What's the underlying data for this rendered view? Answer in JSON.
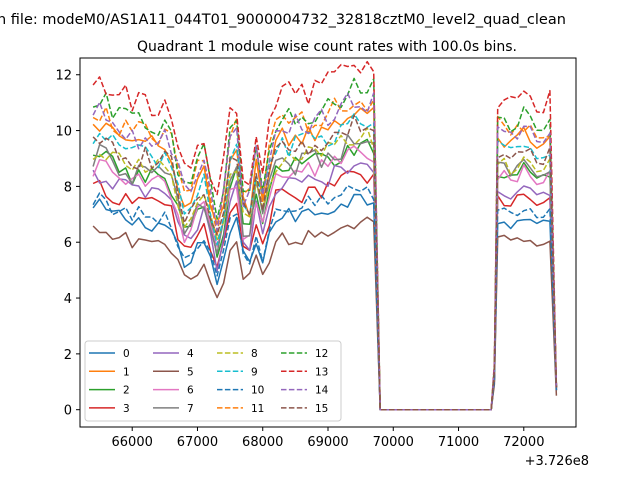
{
  "figure": {
    "suptitle": "n file: modeM0/AS1A11_044T01_9000004732_32818cztM0_level2_quad_clean",
    "title": "Quadrant 1 module wise count rates with 100.0s bins.",
    "offset_label": "+3.726e8"
  },
  "chart_data": {
    "type": "line",
    "title": "Quadrant 1 module wise count rates with 100.0s bins.",
    "xlabel": "",
    "ylabel": "",
    "x_offset": 372600000,
    "xlim": [
      65200,
      72800
    ],
    "ylim": [
      -0.62,
      12.6
    ],
    "xticks": [
      66000,
      67000,
      68000,
      69000,
      70000,
      71000,
      72000
    ],
    "xtick_labels": [
      "66000",
      "67000",
      "68000",
      "69000",
      "70000",
      "71000",
      "72000"
    ],
    "yticks": [
      0,
      2,
      4,
      6,
      8,
      10,
      12
    ],
    "ytick_labels": [
      "0",
      "2",
      "4",
      "6",
      "8",
      "10",
      "12"
    ],
    "grid": false,
    "legend": {
      "placement": "lower-left",
      "columns": 4
    },
    "gaps": [
      {
        "x": [
          69800,
          71500
        ],
        "y": 0
      }
    ],
    "series": [
      {
        "name": "0",
        "color": "#1f77b4",
        "dash": "solid",
        "base": 6.9,
        "d1": 0.55,
        "d2": 0.55,
        "d3": 0.6,
        "end": 0.7
      },
      {
        "name": "1",
        "color": "#ff7f0e",
        "dash": "solid",
        "base": 9.7,
        "d1": 0.62,
        "d2": 0.5,
        "d3": 0.55,
        "end": 0.8
      },
      {
        "name": "2",
        "color": "#2ca02c",
        "dash": "solid",
        "base": 8.6,
        "d1": 0.62,
        "d2": 0.55,
        "d3": 0.55,
        "end": 0.8
      },
      {
        "name": "3",
        "color": "#d62728",
        "dash": "solid",
        "base": 7.6,
        "d1": 0.6,
        "d2": 0.55,
        "d3": 0.6,
        "end": 0.7
      },
      {
        "name": "4",
        "color": "#9467bd",
        "dash": "solid",
        "base": 8.0,
        "d1": 0.62,
        "d2": 0.55,
        "d3": 0.55,
        "end": 0.8
      },
      {
        "name": "5",
        "color": "#8c564b",
        "dash": "solid",
        "base": 6.1,
        "d1": 0.55,
        "d2": 0.45,
        "d3": 0.65,
        "end": 0.5
      },
      {
        "name": "6",
        "color": "#e377c2",
        "dash": "solid",
        "base": 8.4,
        "d1": 0.62,
        "d2": 0.55,
        "d3": 0.55,
        "end": 0.8
      },
      {
        "name": "7",
        "color": "#7f7f7f",
        "dash": "solid",
        "base": 8.7,
        "d1": 0.62,
        "d2": 0.55,
        "d3": 0.55,
        "end": 0.9
      },
      {
        "name": "8",
        "color": "#bcbd22",
        "dash": "dashed",
        "base": 8.9,
        "d1": 0.62,
        "d2": 0.55,
        "d3": 0.55,
        "end": 0.8
      },
      {
        "name": "9",
        "color": "#17becf",
        "dash": "dashed",
        "base": 9.4,
        "d1": 0.62,
        "d2": 0.55,
        "d3": 0.55,
        "end": 0.8
      },
      {
        "name": "10",
        "color": "#1f77b4",
        "dash": "dashed",
        "base": 7.2,
        "d1": 0.6,
        "d2": 0.55,
        "d3": 0.6,
        "end": 0.7
      },
      {
        "name": "11",
        "color": "#ff7f0e",
        "dash": "dashed",
        "base": 10.2,
        "d1": 0.62,
        "d2": 0.5,
        "d3": 0.55,
        "end": 0.8
      },
      {
        "name": "12",
        "color": "#2ca02c",
        "dash": "dashed",
        "base": 10.5,
        "d1": 0.62,
        "d2": 0.5,
        "d3": 0.55,
        "end": 0.8
      },
      {
        "name": "13",
        "color": "#d62728",
        "dash": "dashed",
        "base": 11.2,
        "d1": 0.62,
        "d2": 0.5,
        "d3": 0.55,
        "end": 0.8
      },
      {
        "name": "14",
        "color": "#9467bd",
        "dash": "dashed",
        "base": 10.1,
        "d1": 0.62,
        "d2": 0.5,
        "d3": 0.55,
        "end": 0.8
      },
      {
        "name": "15",
        "color": "#8c564b",
        "dash": "dashed",
        "base": 9.3,
        "d1": 0.62,
        "d2": 0.5,
        "d3": 0.55,
        "end": 0.8
      }
    ]
  }
}
